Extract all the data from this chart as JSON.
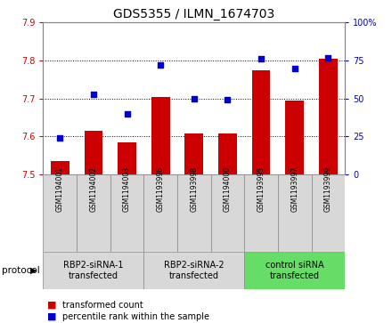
{
  "title": "GDS5355 / ILMN_1674703",
  "samples": [
    "GSM1194001",
    "GSM1194002",
    "GSM1194003",
    "GSM1193996",
    "GSM1193998",
    "GSM1194000",
    "GSM1193995",
    "GSM1193997",
    "GSM1193999"
  ],
  "bar_values": [
    7.535,
    7.615,
    7.585,
    7.705,
    7.607,
    7.607,
    7.775,
    7.695,
    7.805
  ],
  "dot_values": [
    24,
    53,
    40,
    72,
    50,
    49,
    76,
    70,
    77
  ],
  "ylim_left": [
    7.5,
    7.9
  ],
  "ylim_right": [
    0,
    100
  ],
  "yticks_left": [
    7.5,
    7.6,
    7.7,
    7.8,
    7.9
  ],
  "yticks_right": [
    0,
    25,
    50,
    75,
    100
  ],
  "yticklabels_right": [
    "0",
    "25",
    "50",
    "75",
    "100%"
  ],
  "bar_color": "#cc0000",
  "dot_color": "#0000cc",
  "bar_bottom": 7.5,
  "protocols": [
    {
      "label": "RBP2-siRNA-1\ntransfected",
      "start": 0,
      "end": 3,
      "color": "#d8d8d8"
    },
    {
      "label": "RBP2-siRNA-2\ntransfected",
      "start": 3,
      "end": 6,
      "color": "#d8d8d8"
    },
    {
      "label": "control siRNA\ntransfected",
      "start": 6,
      "end": 9,
      "color": "#66dd66"
    }
  ],
  "sample_cell_color": "#d8d8d8",
  "protocol_label": "protocol",
  "legend_bar_label": "transformed count",
  "legend_dot_label": "percentile rank within the sample",
  "grid_color": "#000000",
  "background_color": "#ffffff",
  "tick_label_color_left": "#cc0000",
  "tick_label_color_right": "#0000cc",
  "title_fontsize": 10,
  "axis_fontsize": 7,
  "proto_fontsize": 7,
  "legend_fontsize": 7
}
